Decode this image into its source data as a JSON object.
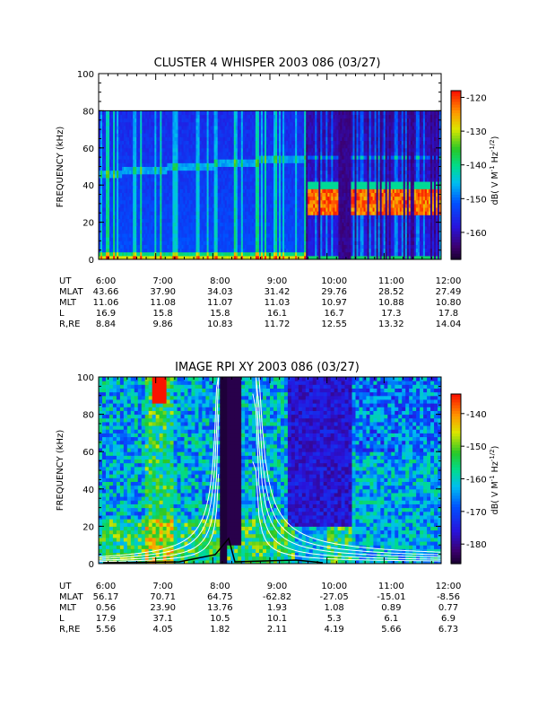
{
  "chart_data": [
    {
      "type": "heatmap",
      "title": "CLUSTER 4 WHISPER 2003 086 (03/27)",
      "ylabel": "FREQUENCY (kHz)",
      "ylim": [
        0,
        100
      ],
      "yticks": [
        "0",
        "20",
        "40",
        "60",
        "80",
        "100"
      ],
      "xlim": [
        "6:00",
        "12:00"
      ],
      "x_labels": [
        "6:00",
        "7:00",
        "8:00",
        "9:00",
        "10:00",
        "11:00",
        "12:00"
      ],
      "colorbar": {
        "label": "dB( V M⁻¹ Hz⁻¹ᐟ²)",
        "label_main": "dB( V M",
        "label_sup1": "-1",
        "label_mid": " Hz",
        "label_sup2": "-1/2",
        "label_end": ")",
        "range": [
          -168,
          -118
        ],
        "ticks": [
          "-120",
          "-130",
          "-140",
          "-150",
          "-160"
        ]
      },
      "data_max_frequency_khz": 80,
      "features": {
        "noise_band_after_9_40_khz": [
          25,
          40
        ],
        "line_emission_khz": 50
      },
      "ephemeris": {
        "row_labels": [
          "UT",
          "MLAT",
          "MLT",
          "L",
          "R,RE"
        ],
        "rows": [
          [
            "6:00",
            "7:00",
            "8:00",
            "9:00",
            "10:00",
            "11:00",
            "12:00"
          ],
          [
            "43.66",
            "37.90",
            "34.03",
            "31.42",
            "29.76",
            "28.52",
            "27.49"
          ],
          [
            "11.06",
            "11.08",
            "11.07",
            "11.03",
            "10.97",
            "10.88",
            "10.80"
          ],
          [
            "16.9",
            "15.8",
            "15.8",
            "16.1",
            "16.7",
            "17.3",
            "17.8"
          ],
          [
            "8.84",
            "9.86",
            "10.83",
            "11.72",
            "12.55",
            "13.32",
            "14.04"
          ]
        ]
      }
    },
    {
      "type": "heatmap",
      "title": "IMAGE RPI XY 2003 086 (03/27)",
      "ylabel": "FREQUENCY (kHz)",
      "ylim": [
        0,
        100
      ],
      "yticks": [
        "0",
        "20",
        "40",
        "60",
        "80",
        "100"
      ],
      "xlim": [
        "6:00",
        "12:00"
      ],
      "x_labels": [
        "6:00",
        "7:00",
        "8:00",
        "9:00",
        "10:00",
        "11:00",
        "12:00"
      ],
      "colorbar": {
        "label": "dB( V M⁻¹ Hz⁻¹ᐟ²)",
        "label_main": "dB( V M",
        "label_sup1": "-1",
        "label_mid": " Hz",
        "label_sup2": "-1/2",
        "label_end": ")",
        "range": [
          -186,
          -134
        ],
        "ticks": [
          "-140",
          "-150",
          "-160",
          "-170",
          "-180"
        ]
      },
      "overlay_curves": "plasma cutoff curves (white)",
      "ephemeris": {
        "row_labels": [
          "UT",
          "MLAT",
          "MLT",
          "L",
          "R,RE"
        ],
        "rows": [
          [
            "6:00",
            "7:00",
            "8:00",
            "9:00",
            "10:00",
            "11:00",
            "12:00"
          ],
          [
            "56.17",
            "70.71",
            "64.75",
            "-62.82",
            "-27.05",
            "-15.01",
            "-8.56"
          ],
          [
            "0.56",
            "23.90",
            "13.76",
            "1.93",
            "1.08",
            "0.89",
            "0.77"
          ],
          [
            "17.9",
            "37.1",
            "10.5",
            "10.1",
            "5.3",
            "6.1",
            "6.9"
          ],
          [
            "5.56",
            "4.05",
            "1.82",
            "2.11",
            "4.19",
            "5.66",
            "6.73"
          ]
        ]
      }
    }
  ]
}
